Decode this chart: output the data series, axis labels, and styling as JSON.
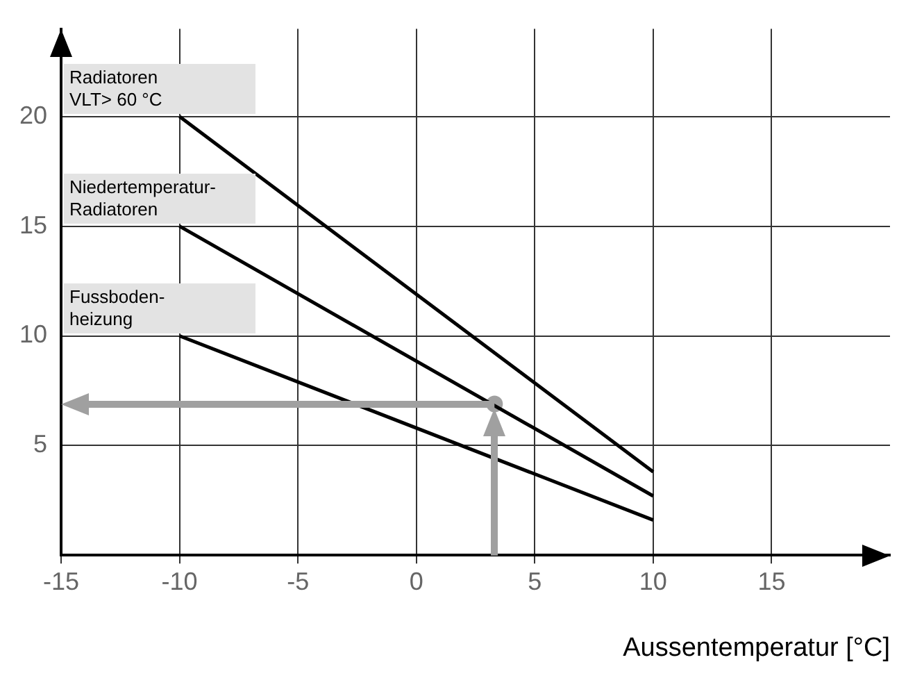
{
  "chart_data": {
    "type": "line",
    "xlabel": "Aussentemperatur [°C]",
    "xlim": [
      -15,
      20
    ],
    "ylim": [
      0,
      24
    ],
    "xticks": [
      -15,
      -10,
      -5,
      0,
      5,
      10,
      15
    ],
    "yticks": [
      5,
      10,
      15,
      20
    ],
    "grid": true,
    "legend": "top left",
    "marker": "none",
    "line_style": "solid",
    "series": [
      {
        "name": "Radiatoren\nVLT> 60 °C",
        "color": "#000000",
        "x": [
          -10,
          10
        ],
        "values": [
          20,
          3.8
        ]
      },
      {
        "name": "Niedertemperatur-\nRadiatoren",
        "color": "#000000",
        "x": [
          -10,
          10
        ],
        "values": [
          15,
          2.7
        ]
      },
      {
        "name": "Fussboden-\nheizung",
        "color": "#000000",
        "x": [
          -10,
          10
        ],
        "values": [
          10,
          1.6
        ]
      },
      {
        "type": "scatter",
        "color": "#a0a0a0",
        "x": [
          3.3
        ],
        "values": [
          6.9
        ],
        "marker": "circle"
      }
    ]
  }
}
